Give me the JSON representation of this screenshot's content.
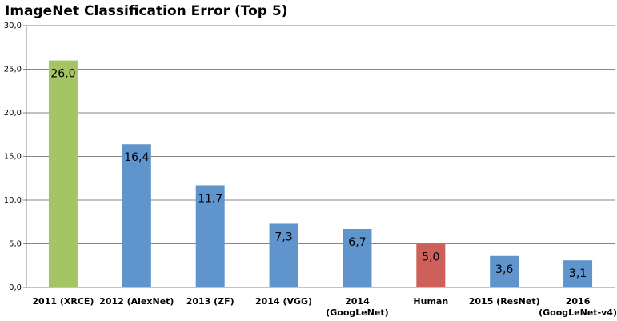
{
  "chart_data": {
    "type": "bar",
    "title": "ImageNet Classification Error (Top 5)",
    "categories": [
      "2011 (XRCE)",
      "2012 (AlexNet)",
      "2013 (ZF)",
      "2014 (VGG)",
      "2014\n(GoogLeNet)",
      "Human",
      "2015 (ResNet)",
      "2016\n(GoogLeNet-v4)"
    ],
    "values": [
      26.0,
      16.4,
      11.7,
      7.3,
      6.7,
      5.0,
      3.6,
      3.1
    ],
    "value_labels": [
      "26,0",
      "16,4",
      "11,7",
      "7,3",
      "6,7",
      "5,0",
      "3,6",
      "3,1"
    ],
    "colors": [
      "#a5c465",
      "#5f94cc",
      "#5f94cc",
      "#5f94cc",
      "#5f94cc",
      "#cd605a",
      "#5f94cc",
      "#5f94cc"
    ],
    "ylim": [
      0,
      30
    ],
    "yticks": [
      {
        "value": 0,
        "label": "0,0"
      },
      {
        "value": 5,
        "label": "5,0"
      },
      {
        "value": 10,
        "label": "10,0"
      },
      {
        "value": 15,
        "label": "15,0"
      },
      {
        "value": 20,
        "label": "20,0"
      },
      {
        "value": 25,
        "label": "25,0"
      },
      {
        "value": 30,
        "label": "30,0"
      }
    ],
    "grid": true
  }
}
